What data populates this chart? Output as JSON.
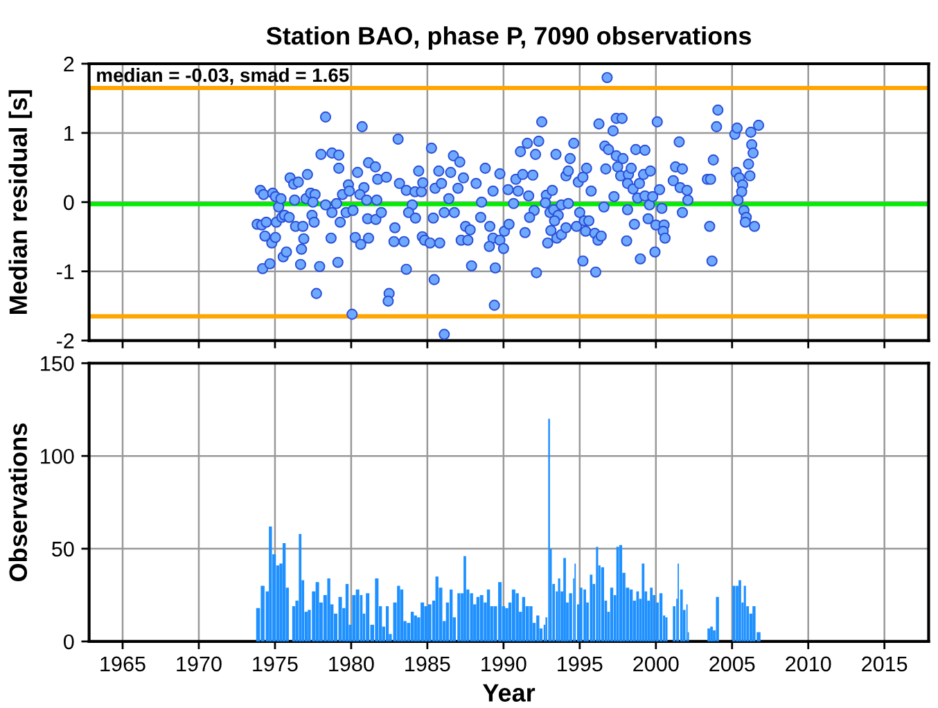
{
  "chart_data": [
    {
      "type": "scatter",
      "title": "Station BAO, phase P, 7090 observations",
      "ylabel": "Median residual [s]",
      "annotations": [
        "median = -0.03, smad = 1.65"
      ],
      "xlim": [
        1962.8,
        2017.9
      ],
      "xticks": [
        1965,
        1970,
        1975,
        1980,
        1985,
        1990,
        1995,
        2000,
        2005,
        2010,
        2015
      ],
      "ylim": [
        -2,
        2
      ],
      "yticks": [
        -2,
        -1,
        0,
        1,
        2
      ],
      "tick_labels": "y",
      "grid": true,
      "marker": "circle",
      "ref_lines": [
        {
          "axis": "y",
          "value": -0.03,
          "label": null,
          "color": "#00ee00"
        },
        {
          "axis": "y",
          "value": 1.65,
          "label": null,
          "color": "#ffa500"
        },
        {
          "axis": "y",
          "value": -1.65,
          "label": null,
          "color": "#ffa500"
        }
      ],
      "series": [
        {
          "color": "#6fa8ff",
          "x": [
            1974.04,
            1974.25,
            1974.85,
            1975.03,
            1975.24,
            1975.39,
            1973.83,
            1974.13,
            1974.43,
            1975.09,
            1974.34,
            1974.79,
            1975.03,
            1974.19,
            1974.67,
            1975.54,
            1975.75,
            1975.45,
            1975.63,
            1975.93,
            1975.99,
            1976.23,
            1976.53,
            1977.13,
            1976.35,
            1976.83,
            1976.89,
            1976.74,
            1976.68,
            1976.29,
            1977.04,
            1977.34,
            1977.63,
            1977.49,
            1977.43,
            1977.57,
            1977.93,
            1977.72,
            1978.02,
            1978.32,
            1978.74,
            1979.19,
            1979.19,
            1978.32,
            1978.74,
            1979.04,
            1979.43,
            1979.82,
            1979.88,
            1979.28,
            1978.68,
            1979.13,
            1980.06,
            1979.67,
            1980.12,
            1980.42,
            1980.72,
            1981.14,
            1981.59,
            1980.84,
            1980.57,
            1981.02,
            1981.68,
            1981.74,
            1982.31,
            1981.08,
            1981.62,
            1981.98,
            1980.27,
            1980.63,
            1981.14,
            1982.49,
            1982.43,
            1983.08,
            1983.17,
            1983.62,
            1984.01,
            1984.19,
            1984.61,
            1984.43,
            1984.7,
            1982.87,
            1982.81,
            1983.47,
            1983.62,
            1983.77,
            1984.22,
            1984.67,
            1985.27,
            1985.39,
            1985.51,
            1985.75,
            1985.93,
            1986.11,
            1986.41,
            1986.53,
            1986.71,
            1987.01,
            1987.13,
            1987.37,
            1984.82,
            1985.18,
            1985.81,
            1985.45,
            1986.11,
            1986.77,
            1987.51,
            1987.81,
            1987.22,
            1987.66,
            1987.9,
            1988.2,
            1988.56,
            1988.8,
            1989.31,
            1988.5,
            1989.1,
            1989.31,
            1989.07,
            1989.46,
            1989.4,
            1989.76,
            1990.3,
            1990.96,
            1990.81,
            1991.26,
            1991.11,
            1991.56,
            1991.92,
            1991.65,
            1992.01,
            1990.66,
            1991.71,
            1990.06,
            1989.76,
            1990.0,
            1990.36,
            1991.41,
            1992.1,
            1992.16,
            1992.31,
            1992.51,
            1996.8,
            1992.81,
            1993.2,
            1993.44,
            1992.75,
            1993.05,
            1993.29,
            1993.59,
            1993.35,
            1993.8,
            1994.25,
            1993.11,
            1992.9,
            1993.5,
            1993.8,
            1994.1,
            1994.37,
            1994.61,
            1994.1,
            1994.25,
            1994.91,
            1995.21,
            1995.45,
            1995.0,
            1994.79,
            1995.3,
            1995.6,
            1995.39,
            1995.99,
            1996.2,
            1996.41,
            1995.75,
            1995.21,
            1996.05,
            1996.26,
            1996.65,
            1996.71,
            1996.89,
            1997.19,
            1997.4,
            1997.78,
            1997.4,
            1997.84,
            1997.49,
            1997.69,
            1998.2,
            1998.38,
            1998.14,
            1998.5,
            1998.92,
            1999.19,
            1999.64,
            1997.25,
            1996.59,
            1998.14,
            1998.8,
            1999.28,
            1999.58,
            1999.79,
            2000.24,
            1998.68,
            1999.28,
            1998.59,
            1998.08,
            1998.98,
            1999.49,
            2000.0,
            2000.54,
            2000.48,
            2000.6,
            1999.94,
            2000.09,
            2000.39,
            2001.14,
            2001.29,
            2001.53,
            2001.74,
            2001.59,
            2002.04,
            2002.1,
            2001.74,
            2003.38,
            2003.59,
            2003.77,
            2003.53,
            2003.68,
            2003.98,
            2004.07,
            2005.18,
            2005.33,
            2005.27,
            2005.48,
            2005.69,
            2005.63,
            2005.39,
            2005.78,
            2005.93,
            2005.87,
            2006.17,
            2006.08,
            2006.29,
            2006.38,
            2006.23,
            2006.74,
            2006.47
          ],
          "values": [
            0.17,
            0.11,
            0.13,
            0.08,
            -0.07,
            0.05,
            -0.32,
            -0.33,
            -0.29,
            -0.29,
            -0.49,
            -0.59,
            -0.51,
            -0.96,
            -0.89,
            -0.79,
            -0.72,
            -0.22,
            -0.19,
            -0.22,
            0.35,
            0.26,
            0.29,
            0.4,
            -0.35,
            -0.35,
            -0.53,
            -0.68,
            -0.9,
            0.03,
            0.05,
            0.13,
            0.11,
            0.0,
            -0.19,
            -0.29,
            -0.93,
            -1.32,
            0.69,
            1.23,
            0.71,
            0.68,
            0.49,
            -0.04,
            -0.15,
            -0.02,
            0.11,
            0.25,
            0.16,
            -0.29,
            -0.52,
            -0.87,
            -1.62,
            -0.15,
            -0.12,
            0.43,
            1.09,
            0.57,
            0.51,
            0.21,
            0.11,
            0.03,
            0.03,
            0.33,
            0.36,
            -0.24,
            -0.25,
            -0.15,
            -0.51,
            -0.61,
            -0.52,
            -1.32,
            -1.43,
            0.91,
            0.27,
            0.17,
            -0.04,
            0.15,
            0.15,
            0.45,
            0.28,
            -0.37,
            -0.57,
            -0.57,
            -0.97,
            -0.15,
            -0.23,
            -0.5,
            0.78,
            -0.23,
            0.2,
            0.45,
            0.27,
            -0.15,
            0.05,
            0.43,
            0.67,
            0.2,
            0.58,
            0.35,
            -0.55,
            -0.59,
            -0.59,
            -1.12,
            -1.91,
            -0.15,
            -0.35,
            -0.4,
            -0.55,
            -0.55,
            -0.92,
            0.27,
            0.0,
            0.49,
            0.16,
            -0.22,
            -0.35,
            -0.52,
            -0.64,
            -0.95,
            -1.49,
            0.41,
            0.18,
            0.16,
            0.33,
            0.4,
            0.73,
            0.85,
            0.39,
            0.09,
            -0.12,
            -0.02,
            -0.22,
            -0.42,
            -0.55,
            -0.67,
            -0.32,
            -0.44,
            0.69,
            -1.02,
            0.88,
            1.16,
            1.8,
            0.1,
            0.17,
            0.69,
            -0.01,
            -0.15,
            -0.11,
            -0.19,
            -0.27,
            -0.04,
            -0.02,
            -0.41,
            -0.59,
            -0.52,
            -0.47,
            -0.37,
            0.63,
            0.85,
            0.38,
            0.45,
            0.29,
            0.36,
            0.49,
            -0.15,
            -0.35,
            -0.27,
            -0.27,
            -0.42,
            -0.45,
            -0.55,
            -0.49,
            0.16,
            -0.85,
            -1.01,
            1.13,
            0.81,
            0.48,
            0.76,
            1.03,
            1.21,
            1.21,
            0.67,
            0.63,
            0.51,
            0.38,
            0.4,
            0.49,
            0.27,
            0.19,
            0.27,
            0.4,
            0.45,
            0.08,
            -0.07,
            -0.11,
            0.06,
            0.09,
            -0.04,
            0.08,
            0.18,
            0.76,
            0.75,
            -0.32,
            -0.56,
            -0.82,
            -0.24,
            -0.33,
            -0.33,
            -0.42,
            -0.52,
            -0.72,
            1.16,
            -0.09,
            0.31,
            0.51,
            0.87,
            0.48,
            0.21,
            0.17,
            0.03,
            -0.15,
            0.33,
            0.33,
            0.61,
            -0.35,
            -0.85,
            1.09,
            1.33,
            0.98,
            1.07,
            0.43,
            0.35,
            0.25,
            0.15,
            0.03,
            -0.12,
            -0.22,
            -0.29,
            0.38,
            0.55,
            0.83,
            0.71,
            1.01,
            1.11,
            -0.35
          ]
        }
      ]
    },
    {
      "type": "bar",
      "xlabel": "Year",
      "ylabel": "Observations",
      "xlim": [
        1962.8,
        2017.9
      ],
      "xticks": [
        1965,
        1970,
        1975,
        1980,
        1985,
        1990,
        1995,
        2000,
        2005,
        2010,
        2015
      ],
      "ylim": [
        0,
        150
      ],
      "yticks": [
        0,
        50,
        100,
        150
      ],
      "grid": true,
      "series": [
        {
          "color": "#1e90ff",
          "x": [
            1973.89,
            1974.19,
            1974.49,
            1974.7,
            1974.94,
            1975.18,
            1975.39,
            1975.6,
            1975.81,
            1976.23,
            1976.44,
            1976.65,
            1976.83,
            1977.04,
            1977.25,
            1977.54,
            1977.78,
            1978.02,
            1978.29,
            1978.53,
            1978.74,
            1978.98,
            1979.28,
            1979.52,
            1979.73,
            1979.94,
            1980.18,
            1980.42,
            1980.66,
            1980.84,
            1981.08,
            1981.38,
            1981.68,
            1981.92,
            1982.13,
            1982.37,
            1982.57,
            1982.87,
            1983.11,
            1983.32,
            1983.53,
            1983.77,
            1984.01,
            1984.22,
            1984.43,
            1984.67,
            1984.91,
            1985.15,
            1985.42,
            1985.63,
            1985.87,
            1986.11,
            1986.32,
            1986.56,
            1986.77,
            1987.07,
            1987.28,
            1987.46,
            1987.66,
            1987.9,
            1988.11,
            1988.32,
            1988.56,
            1988.8,
            1989.01,
            1989.22,
            1989.46,
            1989.76,
            1990.0,
            1990.21,
            1990.42,
            1990.66,
            1990.9,
            1991.11,
            1991.32,
            1991.56,
            1991.8,
            1992.01,
            1992.25,
            1992.46,
            1992.69,
            1992.81,
            1992.99,
            1993.11,
            1993.29,
            1993.5,
            1993.65,
            1993.83,
            1994.01,
            1994.19,
            1994.4,
            1994.61,
            1994.7,
            1994.91,
            1995.09,
            1995.33,
            1995.51,
            1995.75,
            1995.93,
            1996.14,
            1996.29,
            1996.5,
            1996.71,
            1996.89,
            1997.1,
            1997.31,
            1997.49,
            1997.69,
            1997.9,
            1998.14,
            1998.38,
            1998.59,
            1998.8,
            1998.98,
            1999.16,
            1999.34,
            1999.52,
            1999.7,
            1999.88,
            2000.09,
            2000.33,
            2000.54,
            2000.69,
            2001.2,
            2001.38,
            2001.47,
            2001.68,
            2001.86,
            2002.04,
            2002.13,
            2003.47,
            2003.65,
            2003.83,
            2004.04,
            2005.12,
            2005.33,
            2005.51,
            2005.69,
            2005.84,
            2006.02,
            2006.23,
            2006.44,
            2006.74
          ],
          "values": [
            18,
            30,
            27,
            62,
            47,
            41,
            42,
            53,
            29,
            19,
            22,
            58,
            33,
            16,
            17,
            27,
            32,
            21,
            25,
            34,
            20,
            15,
            24,
            18,
            31,
            9,
            25,
            28,
            25,
            15,
            26,
            9,
            34,
            19,
            8,
            19,
            4,
            21,
            30,
            28,
            11,
            10,
            16,
            14,
            13,
            21,
            19,
            20,
            22,
            35,
            29,
            11,
            21,
            28,
            13,
            26,
            26,
            46,
            28,
            26,
            20,
            24,
            25,
            21,
            28,
            19,
            19,
            32,
            19,
            18,
            21,
            28,
            26,
            16,
            24,
            19,
            19,
            10,
            14,
            7,
            9,
            13,
            120,
            50,
            31,
            27,
            34,
            27,
            45,
            21,
            26,
            34,
            42,
            20,
            29,
            28,
            21,
            36,
            31,
            51,
            41,
            40,
            22,
            16,
            29,
            25,
            51,
            52,
            37,
            29,
            28,
            22,
            27,
            23,
            42,
            27,
            22,
            29,
            25,
            21,
            26,
            14,
            13,
            19,
            23,
            42,
            28,
            17,
            20,
            5,
            7,
            8,
            6,
            24,
            30,
            30,
            33,
            21,
            30,
            19,
            15,
            19,
            5
          ]
        }
      ]
    }
  ]
}
